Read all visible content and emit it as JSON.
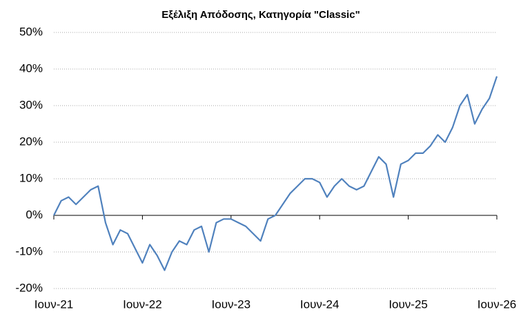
{
  "chart_data": {
    "type": "line",
    "title": "Εξέλιξη Απόδοσης, Κατηγορία \"Classic\"",
    "x": [
      "2021-06",
      "2021-07",
      "2021-08",
      "2021-09",
      "2021-10",
      "2021-11",
      "2021-12",
      "2022-01",
      "2022-02",
      "2022-03",
      "2022-04",
      "2022-05",
      "2022-06",
      "2022-07",
      "2022-08",
      "2022-09",
      "2022-10",
      "2022-11",
      "2022-12",
      "2023-01",
      "2023-02",
      "2023-03",
      "2023-04",
      "2023-05",
      "2023-06",
      "2023-07",
      "2023-08",
      "2023-09",
      "2023-10",
      "2023-11",
      "2023-12",
      "2024-01",
      "2024-02",
      "2024-03",
      "2024-04",
      "2024-05",
      "2024-06",
      "2024-07",
      "2024-08",
      "2024-09",
      "2024-10",
      "2024-11",
      "2024-12",
      "2025-01",
      "2025-02",
      "2025-03",
      "2025-04",
      "2025-05",
      "2025-06",
      "2025-07",
      "2025-08",
      "2025-09",
      "2025-10",
      "2025-11",
      "2025-12",
      "2026-01",
      "2026-02",
      "2026-03",
      "2026-04",
      "2026-05",
      "2026-06"
    ],
    "series": [
      {
        "color": "#4f81bd",
        "values": [
          0,
          4,
          5,
          3,
          5,
          7,
          8,
          -2,
          -8,
          -4,
          -5,
          -9,
          -13,
          -8,
          -11,
          -15,
          -10,
          -7,
          -8,
          -4,
          -3,
          -10,
          -2,
          -1,
          -1,
          -2,
          -3,
          -5,
          -7,
          -1,
          0,
          3,
          6,
          8,
          10,
          10,
          9,
          5,
          8,
          10,
          8,
          7,
          8,
          12,
          16,
          14,
          5,
          14,
          15,
          17,
          17,
          19,
          22,
          20,
          24,
          30,
          33,
          25,
          29,
          32,
          38
        ]
      }
    ],
    "xlim": [
      "2021-06",
      "2026-06"
    ],
    "xticks": [
      {
        "value": "2021-06",
        "label": "Ιουν-21"
      },
      {
        "value": "2022-06",
        "label": "Ιουν-22"
      },
      {
        "value": "2023-06",
        "label": "Ιουν-23"
      },
      {
        "value": "2024-06",
        "label": "Ιουν-24"
      },
      {
        "value": "2025-06",
        "label": "Ιουν-25"
      },
      {
        "value": "2026-06",
        "label": "Ιουν-26"
      }
    ],
    "ylim": [
      -20,
      50
    ],
    "yticks": [
      {
        "value": -20,
        "label": "-20%"
      },
      {
        "value": -10,
        "label": "-10%"
      },
      {
        "value": 0,
        "label": "0%"
      },
      {
        "value": 10,
        "label": "10%"
      },
      {
        "value": 20,
        "label": "20%"
      },
      {
        "value": 30,
        "label": "30%"
      },
      {
        "value": 40,
        "label": "40%"
      },
      {
        "value": 50,
        "label": "50%"
      }
    ],
    "grid": true
  }
}
